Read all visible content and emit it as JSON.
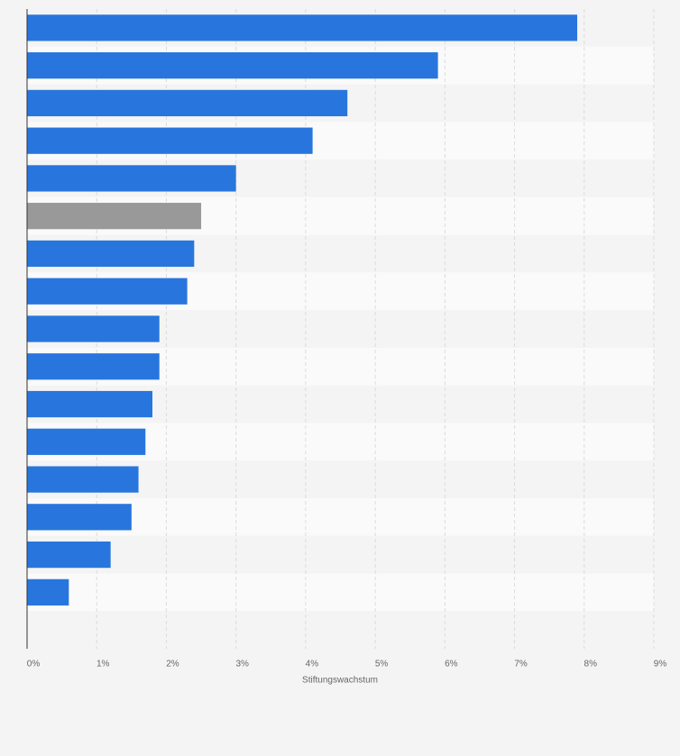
{
  "chart_data": {
    "type": "bar",
    "orientation": "horizontal",
    "x_label": "Stiftungswachstum",
    "categories": [
      null,
      null,
      null,
      null,
      null,
      null,
      null,
      null,
      null,
      null,
      null,
      null,
      null,
      null,
      null,
      null,
      null
    ],
    "values": [
      7.9,
      5.9,
      4.6,
      4.1,
      3.0,
      2.5,
      2.4,
      2.3,
      1.9,
      1.9,
      1.8,
      1.7,
      1.6,
      1.5,
      1.2,
      0.6,
      null
    ],
    "colors": [
      "#2876dd",
      "#2876dd",
      "#2876dd",
      "#2876dd",
      "#2876dd",
      "#999999",
      "#2876dd",
      "#2876dd",
      "#2876dd",
      "#2876dd",
      "#2876dd",
      "#2876dd",
      "#2876dd",
      "#2876dd",
      "#2876dd",
      "#2876dd",
      "#2876dd"
    ],
    "xlim": [
      0,
      9
    ],
    "xticks": [
      {
        "value": 0,
        "label": "0%"
      },
      {
        "value": 1,
        "label": "1%"
      },
      {
        "value": 2,
        "label": "2%"
      },
      {
        "value": 3,
        "label": "3%"
      },
      {
        "value": 4,
        "label": "4%"
      },
      {
        "value": 5,
        "label": "5%"
      },
      {
        "value": 6,
        "label": "6%"
      },
      {
        "value": 7,
        "label": "7%"
      },
      {
        "value": 8,
        "label": "8%"
      },
      {
        "value": 9,
        "label": "9%"
      }
    ],
    "grid": true
  }
}
